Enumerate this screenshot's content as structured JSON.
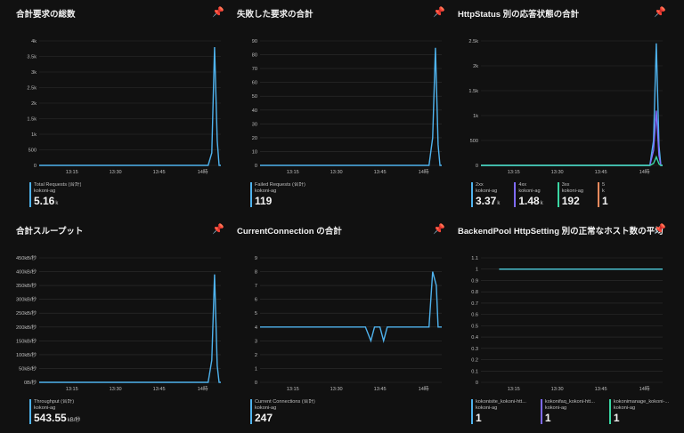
{
  "tiles": [
    {
      "title": "合計要求の総数",
      "y_ticks": [
        "4k",
        "3.5k",
        "3k",
        "2.5k",
        "2k",
        "1.5k",
        "1k",
        "500",
        "0"
      ],
      "x_ticks": [
        "13:15",
        "13:30",
        "13:45",
        "14時"
      ],
      "legend": [
        {
          "label": "Total Requests (合計)",
          "sub": "kokoni-ag",
          "value": "5.16",
          "unit": "k",
          "color": "#4fb3ee"
        }
      ]
    },
    {
      "title": "失敗した要求の合計",
      "y_ticks": [
        "90",
        "80",
        "70",
        "60",
        "50",
        "40",
        "30",
        "20",
        "10",
        "0"
      ],
      "x_ticks": [
        "13:15",
        "13:30",
        "13:45",
        "14時"
      ],
      "legend": [
        {
          "label": "Failed Requests (合計)",
          "sub": "kokoni-ag",
          "value": "119",
          "unit": "",
          "color": "#4fb3ee"
        }
      ]
    },
    {
      "title": "HttpStatus 別の応答状態の合計",
      "y_ticks": [
        "2.5k",
        "2k",
        "1.5k",
        "1k",
        "500",
        "0"
      ],
      "x_ticks": [
        "13:15",
        "13:30",
        "13:45",
        "14時"
      ],
      "legend": [
        {
          "label": "2xx",
          "sub": "kokoni-ag",
          "value": "3.37",
          "unit": "k",
          "color": "#4fb3ee"
        },
        {
          "label": "4xx",
          "sub": "kokoni-ag",
          "value": "1.48",
          "unit": "k",
          "color": "#7f6bff"
        },
        {
          "label": "3xx",
          "sub": "kokoni-ag",
          "value": "192",
          "unit": "",
          "color": "#3ad6a3"
        },
        {
          "label": "5",
          "sub": "k",
          "value": "1",
          "unit": "",
          "color": "#f08a5d"
        }
      ]
    },
    {
      "title": "合計スループット",
      "y_ticks": [
        "450kB/秒",
        "400kB/秒",
        "350kB/秒",
        "300kB/秒",
        "250kB/秒",
        "200kB/秒",
        "150kB/秒",
        "100kB/秒",
        "50kB/秒",
        "0B/秒"
      ],
      "x_ticks": [
        "13:15",
        "13:30",
        "13:45",
        "14時"
      ],
      "legend": [
        {
          "label": "Throughput (合計)",
          "sub": "kokoni-ag",
          "value": "543.55",
          "unit": "kB/秒",
          "color": "#4fb3ee"
        }
      ]
    },
    {
      "title": "CurrentConnection の合計",
      "y_ticks": [
        "9",
        "8",
        "7",
        "6",
        "5",
        "4",
        "3",
        "2",
        "1",
        "0"
      ],
      "x_ticks": [
        "13:15",
        "13:30",
        "13:45",
        "14時"
      ],
      "legend": [
        {
          "label": "Current Connections (合計)",
          "sub": "kokoni-ag",
          "value": "247",
          "unit": "",
          "color": "#4fb3ee"
        }
      ]
    },
    {
      "title": "BackendPool HttpSetting 別の正常なホスト数の平均",
      "y_ticks": [
        "1.1",
        "1",
        "0.9",
        "0.8",
        "0.7",
        "0.6",
        "0.5",
        "0.4",
        "0.3",
        "0.2",
        "0.1",
        "0"
      ],
      "x_ticks": [
        "13:15",
        "13:30",
        "13:45",
        "14時"
      ],
      "legend": [
        {
          "label": "kokonisite_kokoni-htt...",
          "sub": "kokoni-ag",
          "value": "1",
          "unit": "",
          "color": "#4fb3ee"
        },
        {
          "label": "kokonifaq_kokoni-htt...",
          "sub": "kokoni-ag",
          "value": "1",
          "unit": "",
          "color": "#7f6bff"
        },
        {
          "label": "kokonimanage_kokoni-...",
          "sub": "kokoni-ag",
          "value": "1",
          "unit": "",
          "color": "#3ad6a3"
        }
      ]
    }
  ],
  "chart_data": [
    {
      "type": "line",
      "title": "合計要求の総数",
      "ylim": [
        0,
        4000
      ],
      "series": [
        {
          "name": "Total Requests (合計)",
          "color": "#4fb3ee",
          "points": [
            [
              0,
              0
            ],
            [
              0.93,
              0
            ],
            [
              0.95,
              400
            ],
            [
              0.965,
              3800
            ],
            [
              0.98,
              800
            ],
            [
              0.99,
              0
            ],
            [
              1,
              0
            ]
          ]
        }
      ]
    },
    {
      "type": "line",
      "title": "失敗した要求の合計",
      "ylim": [
        0,
        90
      ],
      "series": [
        {
          "name": "Failed Requests (合計)",
          "color": "#4fb3ee",
          "points": [
            [
              0,
              0
            ],
            [
              0.93,
              0
            ],
            [
              0.95,
              20
            ],
            [
              0.965,
              85
            ],
            [
              0.98,
              15
            ],
            [
              0.99,
              0
            ],
            [
              1,
              0
            ]
          ]
        }
      ]
    },
    {
      "type": "line",
      "title": "HttpStatus 別の応答状態の合計",
      "ylim": [
        0,
        2500
      ],
      "series": [
        {
          "name": "2xx",
          "color": "#4fb3ee",
          "points": [
            [
              0,
              0
            ],
            [
              0.93,
              0
            ],
            [
              0.95,
              500
            ],
            [
              0.965,
              2450
            ],
            [
              0.98,
              400
            ],
            [
              0.99,
              0
            ],
            [
              1,
              0
            ]
          ]
        },
        {
          "name": "4xx",
          "color": "#7f6bff",
          "points": [
            [
              0,
              0
            ],
            [
              0.93,
              0
            ],
            [
              0.95,
              300
            ],
            [
              0.965,
              1100
            ],
            [
              0.98,
              200
            ],
            [
              0.99,
              0
            ],
            [
              1,
              0
            ]
          ]
        },
        {
          "name": "3xx",
          "color": "#3ad6a3",
          "points": [
            [
              0,
              0
            ],
            [
              0.93,
              0
            ],
            [
              0.95,
              40
            ],
            [
              0.965,
              170
            ],
            [
              0.98,
              30
            ],
            [
              0.99,
              0
            ],
            [
              1,
              0
            ]
          ]
        }
      ]
    },
    {
      "type": "line",
      "title": "合計スループット",
      "ylim": [
        0,
        450
      ],
      "series": [
        {
          "name": "Throughput (合計)",
          "color": "#4fb3ee",
          "points": [
            [
              0,
              0
            ],
            [
              0.93,
              0
            ],
            [
              0.95,
              80
            ],
            [
              0.965,
              390
            ],
            [
              0.98,
              60
            ],
            [
              0.99,
              0
            ],
            [
              1,
              0
            ]
          ]
        }
      ]
    },
    {
      "type": "line",
      "title": "CurrentConnection の合計",
      "ylim": [
        0,
        9
      ],
      "series": [
        {
          "name": "Current Connections (合計)",
          "color": "#4fb3ee",
          "points": [
            [
              0,
              4
            ],
            [
              0.58,
              4
            ],
            [
              0.61,
              3
            ],
            [
              0.63,
              4
            ],
            [
              0.66,
              4
            ],
            [
              0.68,
              3
            ],
            [
              0.7,
              4
            ],
            [
              0.93,
              4
            ],
            [
              0.95,
              8
            ],
            [
              0.97,
              7
            ],
            [
              0.98,
              4
            ],
            [
              1,
              4
            ]
          ]
        }
      ]
    },
    {
      "type": "line",
      "title": "BackendPool HttpSetting 別の正常なホスト数の平均",
      "ylim": [
        0,
        1.1
      ],
      "series": [
        {
          "name": "kokonisite_kokoni-htt...",
          "color": "#4fd0e0",
          "points": [
            [
              0.1,
              1
            ],
            [
              1,
              1
            ]
          ]
        }
      ]
    }
  ]
}
